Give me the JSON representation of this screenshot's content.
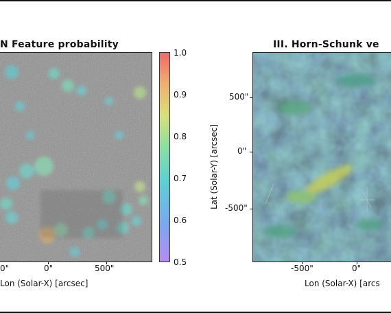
{
  "figure": {
    "left_panel": {
      "title": "N Feature probability",
      "xticks": [
        "0\"",
        "0\"",
        "500\""
      ],
      "xlabel": "Lon (Solar-X) [arcsec]",
      "colorbar_ticks": [
        "1.0",
        "0.9",
        "0.8",
        "0.7",
        "0.6",
        "0.5"
      ]
    },
    "right_panel": {
      "title": "III. Horn-Schunk ve",
      "yticks": [
        "500\"",
        "0\"",
        "-500\""
      ],
      "ylabel": "Lat (Solar-Y) [arcsec]",
      "xticks": [
        "-500\"",
        "0\""
      ],
      "xlabel": "Lon (Solar-X) [arcs"
    }
  }
}
